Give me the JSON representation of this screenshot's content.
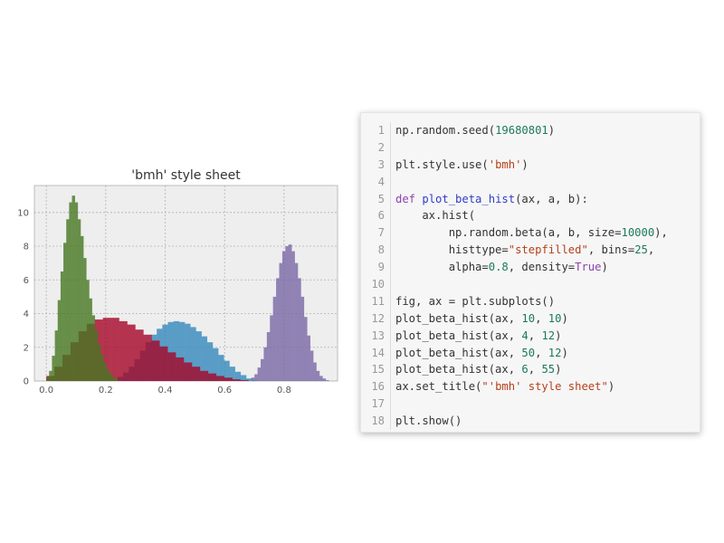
{
  "chart_data": {
    "type": "histogram",
    "title": "'bmh' style sheet",
    "xlabel": "",
    "ylabel": "",
    "xlim": [
      -0.04,
      0.98
    ],
    "ylim": [
      0,
      11.6
    ],
    "xticks": [
      "0.0",
      "0.2",
      "0.4",
      "0.6",
      "0.8"
    ],
    "yticks": [
      "0",
      "2",
      "4",
      "6",
      "8",
      "10"
    ],
    "grid": true,
    "background": "#eeeeee",
    "series": [
      {
        "color": "#7a68a6",
        "alpha": 0.8,
        "bin_start": 0.69,
        "bin_width": 0.0104,
        "heights": [
          0.2,
          0.4,
          0.8,
          1.3,
          2.0,
          2.9,
          3.9,
          5.0,
          6.1,
          7.0,
          7.7,
          8.0,
          8.1,
          7.7,
          7.0,
          6.1,
          5.0,
          3.8,
          2.7,
          1.8,
          1.1,
          0.6,
          0.3,
          0.15,
          0.05
        ]
      },
      {
        "color": "#348abd",
        "alpha": 0.8,
        "bin_start": 0.24,
        "bin_width": 0.0188,
        "heights": [
          0.25,
          0.5,
          0.85,
          1.3,
          1.8,
          2.3,
          2.75,
          3.1,
          3.35,
          3.5,
          3.55,
          3.5,
          3.4,
          3.2,
          2.95,
          2.65,
          2.3,
          1.95,
          1.55,
          1.2,
          0.85,
          0.55,
          0.35,
          0.15,
          0.05
        ]
      },
      {
        "color": "#a60628",
        "alpha": 0.8,
        "bin_start": 0.0,
        "bin_width": 0.0272,
        "heights": [
          0.3,
          0.85,
          1.55,
          2.3,
          2.95,
          3.4,
          3.65,
          3.75,
          3.75,
          3.55,
          3.35,
          3.05,
          2.75,
          2.4,
          2.05,
          1.7,
          1.4,
          1.1,
          0.85,
          0.6,
          0.45,
          0.3,
          0.2,
          0.1,
          0.05
        ]
      },
      {
        "color": "#467821",
        "alpha": 0.8,
        "bin_start": 0.0,
        "bin_width": 0.0096,
        "heights": [
          0.2,
          0.6,
          1.5,
          3.0,
          4.8,
          6.5,
          8.2,
          9.6,
          10.6,
          11.0,
          10.6,
          9.6,
          8.6,
          7.3,
          6.0,
          4.9,
          3.9,
          3.0,
          2.2,
          1.6,
          1.1,
          0.7,
          0.45,
          0.25,
          0.1
        ]
      }
    ]
  },
  "code": {
    "lines": [
      {
        "n": "1",
        "tokens": [
          [
            "np.random.seed(",
            ""
          ],
          [
            "19680801",
            "num"
          ],
          [
            ")",
            ""
          ]
        ]
      },
      {
        "n": "2",
        "tokens": []
      },
      {
        "n": "3",
        "tokens": [
          [
            "plt.style.use(",
            ""
          ],
          [
            "'bmh'",
            "str"
          ],
          [
            ")",
            ""
          ]
        ]
      },
      {
        "n": "4",
        "tokens": []
      },
      {
        "n": "5",
        "tokens": [
          [
            "def",
            "kw"
          ],
          [
            " ",
            ""
          ],
          [
            "plot_beta_hist",
            "fn"
          ],
          [
            "(ax, a, b):",
            ""
          ]
        ]
      },
      {
        "n": "6",
        "tokens": [
          [
            "    ax.hist(",
            ""
          ]
        ]
      },
      {
        "n": "7",
        "tokens": [
          [
            "        np.random.beta(a, b, size=",
            ""
          ],
          [
            "10000",
            "num"
          ],
          [
            "),",
            ""
          ]
        ]
      },
      {
        "n": "8",
        "tokens": [
          [
            "        histtype=",
            ""
          ],
          [
            "\"stepfilled\"",
            "str"
          ],
          [
            ", bins=",
            ""
          ],
          [
            "25",
            "num"
          ],
          [
            ",",
            ""
          ]
        ]
      },
      {
        "n": "9",
        "tokens": [
          [
            "        alpha=",
            ""
          ],
          [
            "0.8",
            "num"
          ],
          [
            ", density=",
            ""
          ],
          [
            "True",
            "builtin"
          ],
          [
            ")",
            ""
          ]
        ]
      },
      {
        "n": "10",
        "tokens": []
      },
      {
        "n": "11",
        "tokens": [
          [
            "fig, ax = plt.subplots()",
            ""
          ]
        ]
      },
      {
        "n": "12",
        "tokens": [
          [
            "plot_beta_hist(ax, ",
            ""
          ],
          [
            "10",
            "num"
          ],
          [
            ", ",
            ""
          ],
          [
            "10",
            "num"
          ],
          [
            ")",
            ""
          ]
        ]
      },
      {
        "n": "13",
        "tokens": [
          [
            "plot_beta_hist(ax, ",
            ""
          ],
          [
            "4",
            "num"
          ],
          [
            ", ",
            ""
          ],
          [
            "12",
            "num"
          ],
          [
            ")",
            ""
          ]
        ]
      },
      {
        "n": "14",
        "tokens": [
          [
            "plot_beta_hist(ax, ",
            ""
          ],
          [
            "50",
            "num"
          ],
          [
            ", ",
            ""
          ],
          [
            "12",
            "num"
          ],
          [
            ")",
            ""
          ]
        ]
      },
      {
        "n": "15",
        "tokens": [
          [
            "plot_beta_hist(ax, ",
            ""
          ],
          [
            "6",
            "num"
          ],
          [
            ", ",
            ""
          ],
          [
            "55",
            "num"
          ],
          [
            ")",
            ""
          ]
        ]
      },
      {
        "n": "16",
        "tokens": [
          [
            "ax.set_title(",
            ""
          ],
          [
            "\"'bmh' style sheet\"",
            "str"
          ],
          [
            ")",
            ""
          ]
        ]
      },
      {
        "n": "17",
        "tokens": []
      },
      {
        "n": "18",
        "tokens": [
          [
            "plt.show()",
            ""
          ]
        ]
      }
    ]
  }
}
